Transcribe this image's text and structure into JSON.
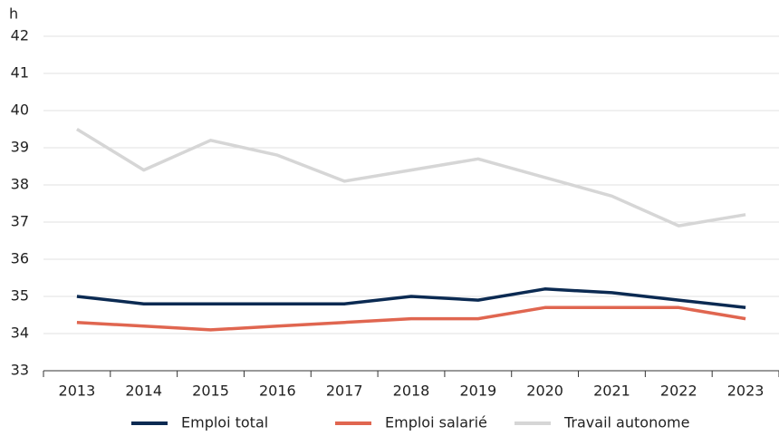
{
  "chart_data": {
    "type": "line",
    "y_label": "h",
    "categories": [
      "2013",
      "2014",
      "2015",
      "2016",
      "2017",
      "2018",
      "2019",
      "2020",
      "2021",
      "2022",
      "2023"
    ],
    "series": [
      {
        "name": "Emploi total",
        "color": "#0b2a52",
        "values": [
          35.0,
          34.8,
          34.8,
          34.8,
          34.8,
          35.0,
          34.9,
          35.2,
          35.1,
          34.9,
          34.7
        ]
      },
      {
        "name": "Emploi salarié",
        "color": "#e06650",
        "values": [
          34.3,
          34.2,
          34.1,
          34.2,
          34.3,
          34.4,
          34.4,
          34.7,
          34.7,
          34.7,
          34.4
        ]
      },
      {
        "name": "Travail autonome",
        "color": "#d6d6d6",
        "values": [
          39.5,
          38.4,
          39.2,
          38.8,
          38.1,
          38.4,
          38.7,
          38.2,
          37.7,
          36.9,
          37.2
        ]
      }
    ],
    "ylim": [
      33,
      42
    ],
    "yticks": [
      33,
      34,
      35,
      36,
      37,
      38,
      39,
      40,
      41,
      42
    ],
    "grid": true
  }
}
